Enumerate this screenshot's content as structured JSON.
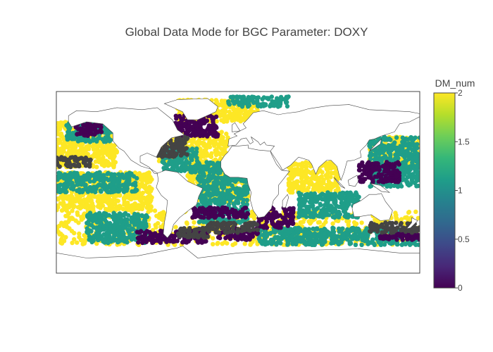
{
  "chart_data": {
    "type": "scatter",
    "subtype": "scatter-geo",
    "title": "Global Data Mode for BGC Parameter: DOXY",
    "projection": "equirectangular",
    "lon_range": [
      -180,
      180
    ],
    "lat_range": [
      -90,
      90
    ],
    "colorbar": {
      "title": "DM_num",
      "range": [
        0,
        2
      ],
      "ticks": [
        "0",
        "0.5",
        "1",
        "1.5",
        "2"
      ],
      "colorscale": [
        "#440154",
        "#482878",
        "#3e4989",
        "#31688e",
        "#26828e",
        "#1f9e89",
        "#35b779",
        "#6ece58",
        "#b5de2b",
        "#fde725"
      ]
    },
    "no_value_color": "#444444",
    "groups": [
      {
        "value": 2,
        "lon": [
          -180,
          180
        ],
        "lat": [
          -62,
          -28
        ]
      },
      {
        "value": 2,
        "lon": [
          -180,
          -85
        ],
        "lat": [
          -28,
          10
        ]
      },
      {
        "value": 2,
        "lon": [
          -50,
          10
        ],
        "lat": [
          -20,
          20
        ]
      },
      {
        "value": 2,
        "lon": [
          -80,
          -10
        ],
        "lat": [
          20,
          50
        ]
      },
      {
        "value": 2,
        "lon": [
          -180,
          -120
        ],
        "lat": [
          15,
          45
        ]
      },
      {
        "value": 2,
        "lon": [
          130,
          180
        ],
        "lat": [
          15,
          45
        ]
      },
      {
        "value": 2,
        "lon": [
          50,
          100
        ],
        "lat": [
          -10,
          20
        ]
      },
      {
        "value": 2,
        "lon": [
          -180,
          -125
        ],
        "lat": [
          45,
          60
        ]
      },
      {
        "value": 2,
        "lon": [
          -60,
          20
        ],
        "lat": [
          60,
          82
        ]
      },
      {
        "value": 1,
        "lon": [
          -170,
          -125
        ],
        "lat": [
          40,
          60
        ]
      },
      {
        "value": 1,
        "lon": [
          130,
          180
        ],
        "lat": [
          -5,
          45
        ]
      },
      {
        "value": 1,
        "lon": [
          -40,
          10
        ],
        "lat": [
          -40,
          20
        ]
      },
      {
        "value": 1,
        "lon": [
          60,
          120
        ],
        "lat": [
          -35,
          -10
        ]
      },
      {
        "value": 1,
        "lon": [
          -150,
          -90
        ],
        "lat": [
          -60,
          -30
        ]
      },
      {
        "value": 1,
        "lon": [
          20,
          180
        ],
        "lat": [
          -62,
          -45
        ]
      },
      {
        "value": 1,
        "lon": [
          -10,
          50
        ],
        "lat": [
          75,
          85
        ]
      },
      {
        "value": 1,
        "lon": [
          -75,
          -40
        ],
        "lat": [
          10,
          35
        ]
      },
      {
        "value": 1,
        "lon": [
          -180,
          -100
        ],
        "lat": [
          -10,
          10
        ]
      },
      {
        "value": 0,
        "lon": [
          -162,
          -135
        ],
        "lat": [
          46,
          58
        ]
      },
      {
        "value": 0,
        "lon": [
          -62,
          -20
        ],
        "lat": [
          45,
          66
        ]
      },
      {
        "value": 0,
        "lon": [
          20,
          55
        ],
        "lat": [
          -45,
          -25
        ]
      },
      {
        "value": 0,
        "lon": [
          -100,
          -30
        ],
        "lat": [
          -60,
          -48
        ]
      },
      {
        "value": 0,
        "lon": [
          -20,
          20
        ],
        "lat": [
          -57,
          -45
        ]
      },
      {
        "value": 0,
        "lon": [
          120,
          160
        ],
        "lat": [
          0,
          20
        ]
      },
      {
        "value": 0,
        "lon": [
          -45,
          -25
        ],
        "lat": [
          -35,
          -25
        ]
      },
      {
        "value": 0,
        "lon": [
          -25,
          10
        ],
        "lat": [
          -35,
          -25
        ]
      },
      {
        "value": 0,
        "lon": [
          140,
          180
        ],
        "lat": [
          -57,
          -50
        ]
      },
      {
        "value": null,
        "lon": [
          -180,
          -145
        ],
        "lat": [
          15,
          25
        ]
      },
      {
        "value": null,
        "lon": [
          -80,
          -50
        ],
        "lat": [
          25,
          45
        ]
      },
      {
        "value": null,
        "lon": [
          -60,
          -30
        ],
        "lat": [
          -55,
          -45
        ]
      },
      {
        "value": null,
        "lon": [
          -30,
          20
        ],
        "lat": [
          -50,
          -40
        ]
      },
      {
        "value": null,
        "lon": [
          130,
          180
        ],
        "lat": [
          -50,
          -40
        ]
      }
    ]
  }
}
